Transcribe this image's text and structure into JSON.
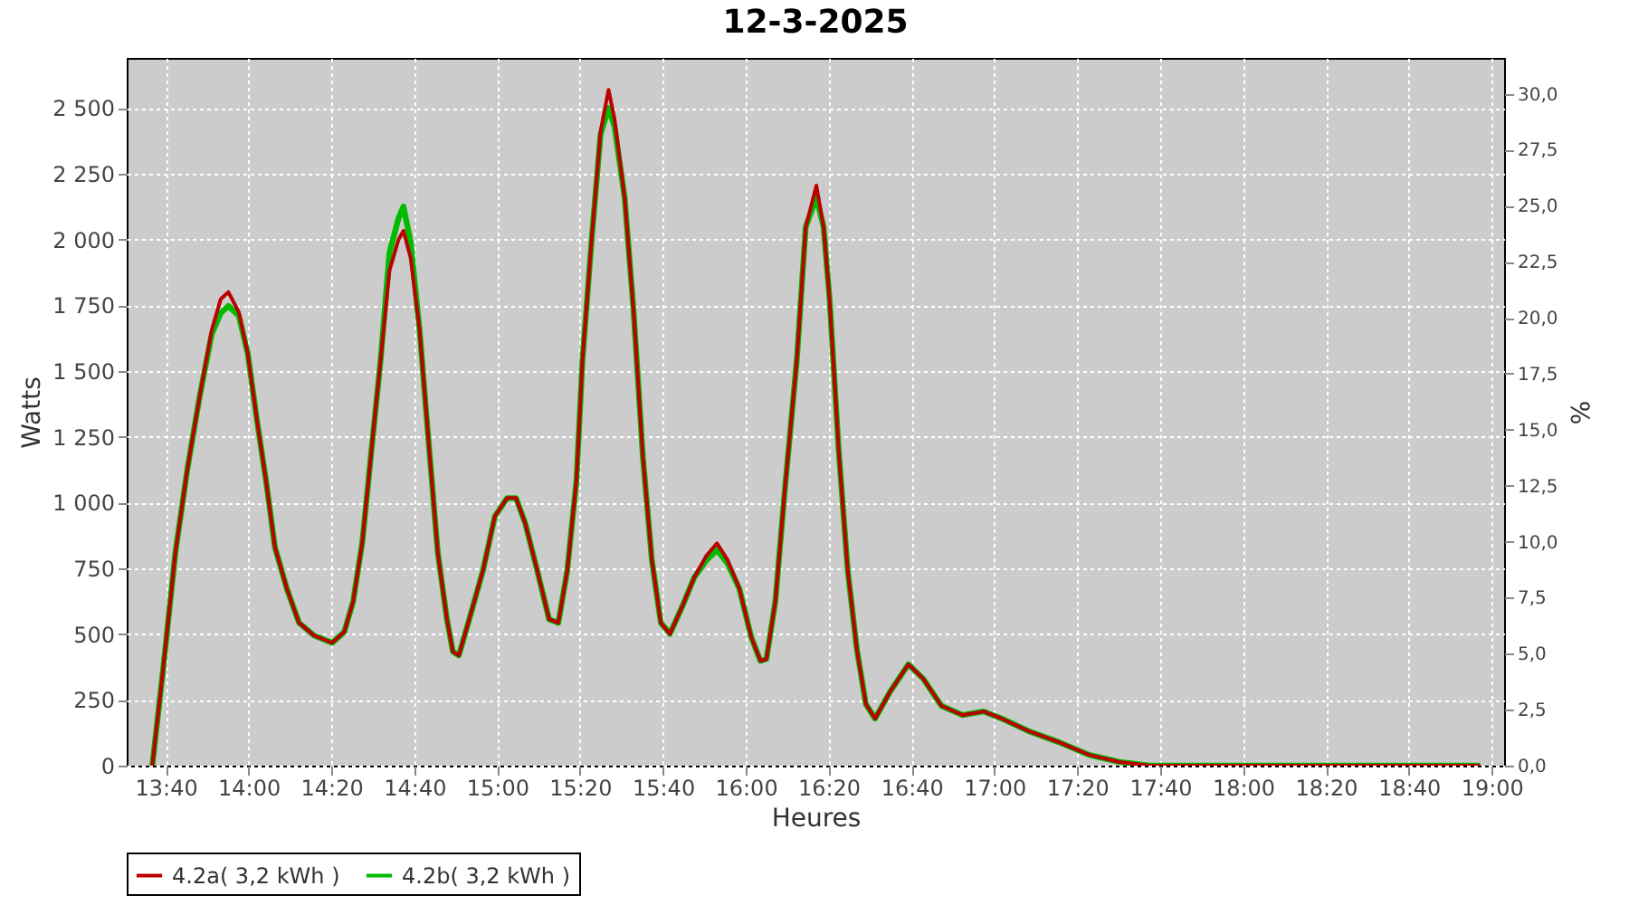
{
  "chart_data": {
    "type": "line",
    "title": "12-3-2025",
    "xlabel": "Heures",
    "ylabel": "Watts",
    "y2label": "%",
    "x": [
      13.613,
      13.657,
      13.706,
      13.754,
      13.803,
      13.852,
      13.888,
      13.919,
      13.961,
      13.997,
      14.034,
      14.07,
      14.106,
      14.154,
      14.203,
      14.263,
      14.336,
      14.385,
      14.421,
      14.458,
      14.494,
      14.531,
      14.567,
      14.603,
      14.623,
      14.652,
      14.688,
      14.725,
      14.761,
      14.798,
      14.822,
      14.846,
      14.894,
      14.943,
      14.991,
      15.04,
      15.076,
      15.113,
      15.161,
      15.209,
      15.246,
      15.282,
      15.319,
      15.343,
      15.38,
      15.416,
      15.448,
      15.472,
      15.513,
      15.549,
      15.586,
      15.622,
      15.658,
      15.695,
      15.744,
      15.792,
      15.841,
      15.884,
      15.926,
      15.974,
      16.022,
      16.059,
      16.083,
      16.119,
      16.156,
      16.205,
      16.241,
      16.284,
      16.313,
      16.337,
      16.374,
      16.41,
      16.447,
      16.483,
      16.52,
      16.581,
      16.654,
      16.714,
      16.787,
      16.872,
      16.956,
      17.029,
      17.138,
      17.26,
      17.381,
      17.502,
      17.624,
      18.953
    ],
    "series": [
      {
        "name": "4.2a( 3,2 kWh )",
        "color": "#bb0000",
        "values": [
          0,
          371,
          811,
          1127,
          1401,
          1656,
          1773,
          1800,
          1724,
          1566,
          1312,
          1085,
          831,
          673,
          543,
          495,
          467,
          508,
          625,
          852,
          1195,
          1539,
          1882,
          1999,
          2033,
          1930,
          1656,
          1223,
          811,
          556,
          433,
          419,
          577,
          742,
          948,
          1017,
          1017,
          921,
          742,
          556,
          543,
          742,
          1085,
          1539,
          1999,
          2411,
          2569,
          2459,
          2157,
          1724,
          1175,
          783,
          543,
          501,
          604,
          714,
          797,
          845,
          783,
          673,
          488,
          398,
          405,
          625,
          1037,
          1539,
          2047,
          2205,
          2047,
          1773,
          1195,
          742,
          440,
          234,
          179,
          282,
          385,
          330,
          227,
          192,
          206,
          179,
          131,
          89,
          41,
          14,
          0,
          0
        ]
      },
      {
        "name": "4.2b( 3,2 kWh )",
        "color": "#00bb00",
        "values": [
          0,
          371,
          811,
          1127,
          1401,
          1640,
          1720,
          1747,
          1710,
          1566,
          1312,
          1085,
          831,
          673,
          543,
          495,
          467,
          508,
          625,
          852,
          1195,
          1539,
          1950,
          2080,
          2125,
          1990,
          1656,
          1223,
          811,
          556,
          433,
          419,
          577,
          742,
          948,
          1017,
          1017,
          921,
          742,
          556,
          543,
          742,
          1085,
          1539,
          1999,
          2400,
          2500,
          2430,
          2157,
          1724,
          1175,
          783,
          543,
          501,
          604,
          714,
          780,
          820,
          770,
          673,
          488,
          398,
          405,
          625,
          1037,
          1539,
          2047,
          2160,
          2047,
          1773,
          1195,
          742,
          440,
          234,
          179,
          282,
          385,
          330,
          227,
          192,
          206,
          179,
          131,
          89,
          41,
          14,
          0,
          0
        ]
      }
    ],
    "xlim": [
      13.51,
      19.05
    ],
    "xticks": [
      {
        "value": 13.667,
        "label": "13:40"
      },
      {
        "value": 14,
        "label": "14:00"
      },
      {
        "value": 14.333,
        "label": "14:20"
      },
      {
        "value": 14.667,
        "label": "14:40"
      },
      {
        "value": 15,
        "label": "15:00"
      },
      {
        "value": 15.333,
        "label": "15:20"
      },
      {
        "value": 15.667,
        "label": "15:40"
      },
      {
        "value": 16,
        "label": "16:00"
      },
      {
        "value": 16.333,
        "label": "16:20"
      },
      {
        "value": 16.667,
        "label": "16:40"
      },
      {
        "value": 17,
        "label": "17:00"
      },
      {
        "value": 17.333,
        "label": "17:20"
      },
      {
        "value": 17.667,
        "label": "17:40"
      },
      {
        "value": 18,
        "label": "18:00"
      },
      {
        "value": 18.333,
        "label": "18:20"
      },
      {
        "value": 18.667,
        "label": "18:40"
      },
      {
        "value": 19,
        "label": "19:00"
      }
    ],
    "ylim": [
      0,
      2690
    ],
    "yticks": [
      0,
      250,
      500,
      750,
      {
        "value": 1000,
        "label": "1 000"
      },
      {
        "value": 1250,
        "label": "1 250"
      },
      {
        "value": 1500,
        "label": "1 500"
      },
      {
        "value": 1750,
        "label": "1 750"
      },
      {
        "value": 2000,
        "label": "2 000"
      },
      {
        "value": 2250,
        "label": "2 250"
      },
      {
        "value": 2500,
        "label": "2 500"
      }
    ],
    "y2lim": [
      0,
      31.6
    ],
    "y2ticks": [
      {
        "value": 0,
        "label": "0,0"
      },
      {
        "value": 2.5,
        "label": "2,5"
      },
      {
        "value": 5,
        "label": "5,0"
      },
      {
        "value": 7.5,
        "label": "7,5"
      },
      {
        "value": 10,
        "label": "10,0"
      },
      {
        "value": 12.5,
        "label": "12,5"
      },
      {
        "value": 15,
        "label": "15,0"
      },
      {
        "value": 17.5,
        "label": "17,5"
      },
      {
        "value": 20,
        "label": "20,0"
      },
      {
        "value": 22.5,
        "label": "22,5"
      },
      {
        "value": 25,
        "label": "25,0"
      },
      {
        "value": 27.5,
        "label": "27,5"
      },
      {
        "value": 30,
        "label": "30,0"
      }
    ],
    "grid": true,
    "legend": "bottom",
    "line_style": "solid"
  }
}
